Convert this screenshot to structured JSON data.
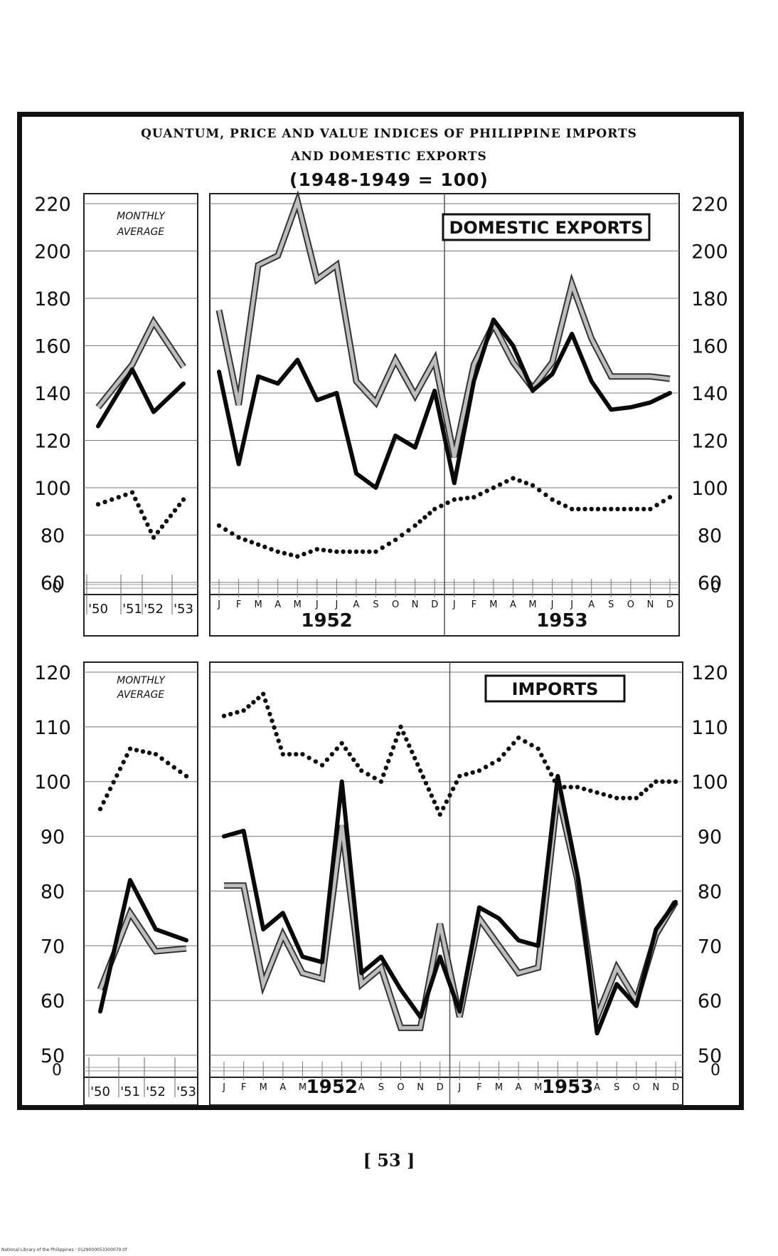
{
  "title_line1": "QUANTUM, PRICE AND VALUE INDICES OF   PHILIPPINE   IMPORTS",
  "title_line2": "AND   DOMESTIC  EXPORTS",
  "title_line3": "(1948-1949 = 100)",
  "page_number": "[ 53 ]",
  "footer_credit": "National Library of the Philippines · 0129000053300079.tif",
  "chart_data": [
    {
      "type": "line",
      "title": "DOMESTIC EXPORTS",
      "panel_label": "MONTHLY AVERAGE",
      "ylim": [
        60,
        220
      ],
      "yticks": [
        220,
        200,
        180,
        160,
        140,
        120,
        100,
        80,
        60
      ],
      "zero_label": "0",
      "grid": true,
      "annual": {
        "categories": [
          "'50",
          "'51",
          "'52",
          "'53"
        ],
        "series": [
          {
            "style": "shaded",
            "values": [
              134,
              152,
              170,
              151
            ]
          },
          {
            "style": "solid",
            "values": [
              126,
              150,
              132,
              144
            ]
          },
          {
            "style": "dotted",
            "values": [
              93,
              98,
              79,
              95
            ]
          }
        ]
      },
      "monthly": {
        "categories": [
          "J",
          "F",
          "M",
          "A",
          "M",
          "J",
          "J",
          "A",
          "S",
          "O",
          "N",
          "D",
          "J",
          "F",
          "M",
          "A",
          "M",
          "J",
          "J",
          "A",
          "S",
          "O",
          "N",
          "D"
        ],
        "year_labels": [
          "1952",
          "1953"
        ],
        "series": [
          {
            "style": "shaded",
            "values": [
              175,
              135,
              194,
              198,
              221,
              188,
              194,
              145,
              136,
              154,
              139,
              154,
              113,
              152,
              169,
              153,
              142,
              153,
              186,
              163,
              147,
              147,
              147,
              146
            ]
          },
          {
            "style": "solid",
            "values": [
              149,
              110,
              147,
              144,
              154,
              137,
              140,
              106,
              100,
              122,
              117,
              141,
              102,
              145,
              171,
              160,
              141,
              148,
              165,
              145,
              133,
              134,
              136,
              140
            ]
          },
          {
            "style": "dotted",
            "values": [
              84,
              79,
              76,
              73,
              71,
              74,
              73,
              73,
              73,
              78,
              84,
              91,
              95,
              96,
              100,
              104,
              101,
              95,
              91,
              91,
              91,
              91,
              91,
              96
            ]
          }
        ]
      }
    },
    {
      "type": "line",
      "title": "IMPORTS",
      "panel_label": "MONTHLY AVERAGE",
      "ylim": [
        50,
        120
      ],
      "yticks": [
        120,
        110,
        100,
        90,
        80,
        70,
        60,
        50
      ],
      "zero_label": "0",
      "grid": true,
      "annual": {
        "categories": [
          "'50",
          "'51",
          "'52",
          "'53"
        ],
        "series": [
          {
            "style": "shaded",
            "values": [
              62,
              76,
              69,
              69.5
            ]
          },
          {
            "style": "solid",
            "values": [
              58,
              82,
              73,
              71
            ]
          },
          {
            "style": "dotted",
            "values": [
              95,
              106,
              105,
              101
            ]
          }
        ]
      },
      "monthly": {
        "categories": [
          "J",
          "F",
          "M",
          "A",
          "M",
          "J",
          "J",
          "A",
          "S",
          "O",
          "N",
          "D",
          "J",
          "F",
          "M",
          "A",
          "M",
          "J",
          "J",
          "A",
          "S",
          "O",
          "N",
          "D"
        ],
        "year_labels": [
          "1952",
          "1953"
        ],
        "series": [
          {
            "style": "shaded",
            "values": [
              81,
              81,
              63,
              72,
              65,
              64,
              92,
              63,
              66,
              55,
              55,
              74,
              57,
              75,
              70,
              65,
              66,
              98,
              82,
              57,
              66,
              60,
              72,
              78
            ]
          },
          {
            "style": "solid",
            "values": [
              90,
              91,
              73,
              76,
              68,
              67,
              100,
              65,
              68,
              62,
              57,
              68,
              58,
              77,
              75,
              71,
              70,
              101,
              83,
              54,
              63,
              59,
              73,
              78
            ]
          },
          {
            "style": "dotted",
            "values": [
              112,
              113,
              116,
              105,
              105,
              103,
              107,
              102,
              100,
              110,
              102,
              94,
              101,
              102,
              104,
              108,
              106,
              99,
              99,
              98,
              97,
              97,
              100,
              100
            ]
          }
        ]
      }
    }
  ]
}
